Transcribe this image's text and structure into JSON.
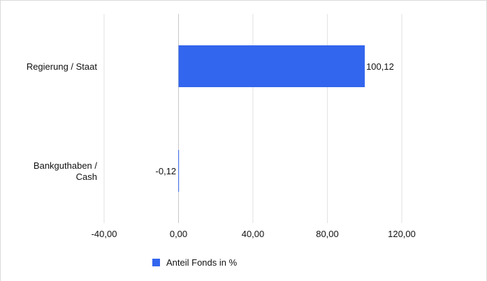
{
  "chart_data": {
    "type": "bar",
    "orientation": "horizontal",
    "categories": [
      [
        "Regierung / Staat"
      ],
      [
        "Bankguthaben /",
        "Cash"
      ]
    ],
    "series": [
      {
        "name": "Anteil Fonds in %",
        "values": [
          100.12,
          -0.12
        ],
        "value_labels": [
          "100,12",
          "-0,12"
        ],
        "color": "#3366ee"
      }
    ],
    "xlim": [
      -40,
      120
    ],
    "xticks": [
      -40,
      0,
      40,
      80,
      120
    ],
    "xtick_labels": [
      "-40,00",
      "0,00",
      "40,00",
      "80,00",
      "120,00"
    ],
    "grid": "vertical, light",
    "legend_position": "bottom-center"
  }
}
